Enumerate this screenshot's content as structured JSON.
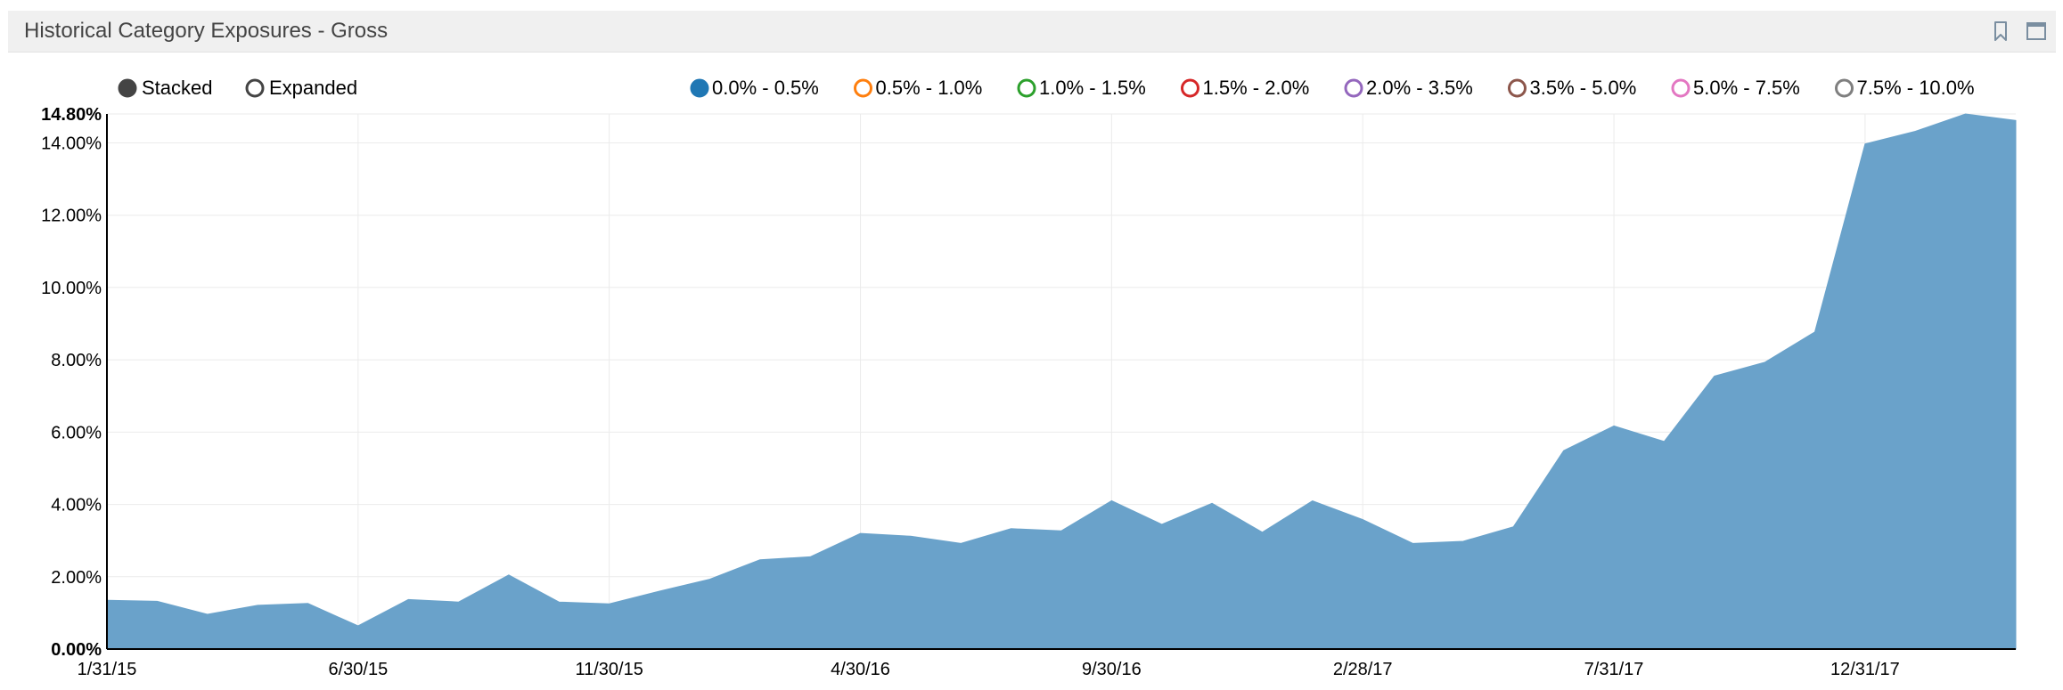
{
  "panel": {
    "title": "Historical Category Exposures - Gross",
    "icons": [
      "bookmark-icon",
      "maximize-icon"
    ]
  },
  "controls": {
    "modes": [
      {
        "label": "Stacked",
        "selected": true
      },
      {
        "label": "Expanded",
        "selected": false
      }
    ]
  },
  "colors": {
    "area": "#6aa2ca",
    "grid": "#ebebeb",
    "axis": "#000000"
  },
  "chart_data": {
    "type": "area",
    "title": "",
    "xlabel": "",
    "ylabel": "",
    "ylim": [
      0,
      14.8
    ],
    "y_ticks": [
      "0.00%",
      "2.00%",
      "4.00%",
      "6.00%",
      "8.00%",
      "10.00%",
      "12.00%",
      "14.00%",
      "14.80%"
    ],
    "y_tick_values": [
      0,
      2,
      4,
      6,
      8,
      10,
      12,
      14,
      14.8
    ],
    "x_tick_labels": [
      "1/31/15",
      "6/30/15",
      "11/30/15",
      "4/30/16",
      "9/30/16",
      "2/28/17",
      "7/31/17",
      "12/31/17"
    ],
    "x_tick_indices": [
      0,
      5,
      10,
      15,
      20,
      25,
      30,
      35
    ],
    "grid": true,
    "legend_position": "top",
    "legend": [
      {
        "name": "0.0% - 0.5%",
        "color": "#1f77b4",
        "active": true
      },
      {
        "name": "0.5% - 1.0%",
        "color": "#ff7f0e",
        "active": false
      },
      {
        "name": "1.0% - 1.5%",
        "color": "#2ca02c",
        "active": false
      },
      {
        "name": "1.5% - 2.0%",
        "color": "#d62728",
        "active": false
      },
      {
        "name": "2.0% - 3.5%",
        "color": "#9467bd",
        "active": false
      },
      {
        "name": "3.5% - 5.0%",
        "color": "#8c564b",
        "active": false
      },
      {
        "name": "5.0% - 7.5%",
        "color": "#e377c2",
        "active": false
      },
      {
        "name": "7.5% - 10.0%",
        "color": "#7f7f7f",
        "active": false
      }
    ],
    "x": [
      "1/31/15",
      "2/28/15",
      "3/31/15",
      "4/30/15",
      "5/31/15",
      "6/30/15",
      "7/31/15",
      "8/31/15",
      "9/30/15",
      "10/31/15",
      "11/30/15",
      "12/31/15",
      "1/31/16",
      "2/29/16",
      "3/31/16",
      "4/30/16",
      "5/31/16",
      "6/30/16",
      "7/31/16",
      "8/31/16",
      "9/30/16",
      "10/31/16",
      "11/30/16",
      "12/31/16",
      "1/31/17",
      "2/28/17",
      "3/31/17",
      "4/30/17",
      "5/31/17",
      "6/30/17",
      "7/31/17",
      "8/31/17",
      "9/30/17",
      "10/31/17",
      "11/30/17",
      "12/31/17",
      "1/31/18",
      "2/28/18",
      "3/31/18"
    ],
    "series": [
      {
        "name": "0.0% - 0.5%",
        "values": [
          1.35,
          1.32,
          0.96,
          1.21,
          1.26,
          0.64,
          1.37,
          1.3,
          2.05,
          1.3,
          1.25,
          1.6,
          1.93,
          2.47,
          2.55,
          3.2,
          3.12,
          2.92,
          3.33,
          3.27,
          4.1,
          3.45,
          4.03,
          3.23,
          4.1,
          3.58,
          2.92,
          2.98,
          3.38,
          5.49,
          6.17,
          5.74,
          7.55,
          7.93,
          8.77,
          13.97,
          14.32,
          14.8,
          14.62
        ]
      }
    ]
  }
}
